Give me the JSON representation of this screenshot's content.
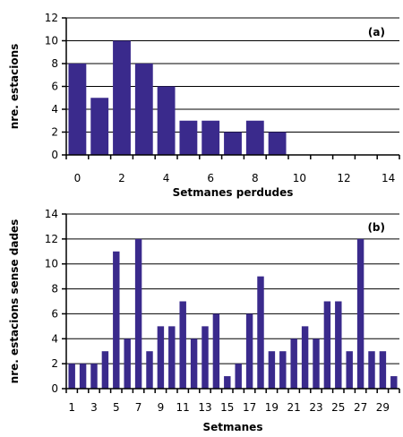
{
  "colors": {
    "bar": "#3a2a8c",
    "grid": "#000000",
    "axis": "#000000"
  },
  "chart_data": [
    {
      "type": "bar",
      "panel_label": "(a)",
      "xlabel": "Setmanes perdudes",
      "ylabel": "nre. estacions",
      "ylim": [
        0,
        12
      ],
      "yticks": [
        "0",
        "2",
        "4",
        "6",
        "8",
        "10",
        "12"
      ],
      "x": [
        0,
        1,
        2,
        3,
        4,
        5,
        6,
        7,
        8,
        9
      ],
      "values": [
        8,
        5,
        10,
        8,
        6,
        3,
        3,
        2,
        3,
        2
      ],
      "xlim": [
        0,
        15
      ],
      "xticks": [
        "0",
        "2",
        "4",
        "6",
        "8",
        "10",
        "12",
        "14"
      ],
      "grid": true
    },
    {
      "type": "bar",
      "panel_label": "(b)",
      "xlabel": "Setmanes",
      "ylabel": "nre. estacions sense dades",
      "ylim": [
        0,
        14
      ],
      "yticks": [
        "0",
        "2",
        "4",
        "6",
        "8",
        "10",
        "12",
        "14"
      ],
      "x": [
        1,
        2,
        3,
        4,
        5,
        6,
        7,
        8,
        9,
        10,
        11,
        12,
        13,
        14,
        15,
        16,
        17,
        18,
        19,
        20,
        21,
        22,
        23,
        24,
        25,
        26,
        27,
        28,
        29,
        30
      ],
      "values": [
        2,
        2,
        2,
        3,
        11,
        4,
        12,
        3,
        5,
        5,
        7,
        4,
        5,
        6,
        1,
        2,
        6,
        9,
        3,
        3,
        4,
        5,
        4,
        7,
        7,
        3,
        12,
        3,
        3,
        1
      ],
      "xticks": [
        "1",
        "3",
        "5",
        "7",
        "9",
        "11",
        "13",
        "15",
        "17",
        "19",
        "21",
        "23",
        "25",
        "27",
        "29"
      ],
      "grid": true
    }
  ]
}
